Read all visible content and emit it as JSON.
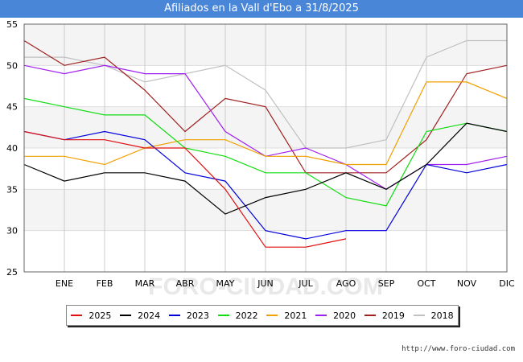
{
  "header": {
    "title": "Afiliados en la Vall d'Ebo a 31/8/2025"
  },
  "watermark": "FORO-CIUDAD.COM",
  "footer": {
    "url": "http://www.foro-ciudad.com"
  },
  "chart_data": {
    "type": "line",
    "title": "Afiliados en la Vall d'Ebo a 31/8/2025",
    "categories": [
      "",
      "ENE",
      "FEB",
      "MAR",
      "ABR",
      "MAY",
      "JUN",
      "JUL",
      "AGO",
      "SEP",
      "OCT",
      "NOV",
      "DIC"
    ],
    "ylim": [
      25,
      55
    ],
    "yticks": [
      25,
      30,
      35,
      40,
      45,
      50,
      55
    ],
    "grid": true,
    "series": [
      {
        "name": "2025",
        "color": "#e01010",
        "values": [
          42,
          41,
          41,
          40,
          40,
          35,
          28,
          28,
          29,
          null,
          null,
          null,
          null
        ]
      },
      {
        "name": "2024",
        "color": "#000000",
        "values": [
          38,
          36,
          37,
          37,
          36,
          32,
          34,
          35,
          37,
          35,
          38,
          43,
          42
        ]
      },
      {
        "name": "2023",
        "color": "#0000dd",
        "values": [
          42,
          41,
          42,
          41,
          37,
          36,
          30,
          29,
          30,
          30,
          38,
          37,
          38
        ]
      },
      {
        "name": "2022",
        "color": "#10dd10",
        "values": [
          46,
          45,
          44,
          44,
          40,
          39,
          37,
          37,
          34,
          33,
          42,
          43,
          42
        ]
      },
      {
        "name": "2021",
        "color": "#f0a000",
        "values": [
          39,
          39,
          38,
          40,
          41,
          41,
          39,
          39,
          38,
          38,
          48,
          48,
          46
        ]
      },
      {
        "name": "2020",
        "color": "#a020f0",
        "values": [
          50,
          49,
          50,
          49,
          49,
          42,
          39,
          40,
          38,
          35,
          38,
          38,
          39
        ]
      },
      {
        "name": "2019",
        "color": "#a02020",
        "values": [
          53,
          50,
          51,
          47,
          42,
          46,
          45,
          37,
          37,
          37,
          41,
          49,
          50
        ]
      },
      {
        "name": "2018",
        "color": "#c0c0c0",
        "values": [
          51,
          51,
          50,
          48,
          49,
          50,
          47,
          40,
          40,
          41,
          51,
          53,
          53
        ]
      }
    ]
  }
}
